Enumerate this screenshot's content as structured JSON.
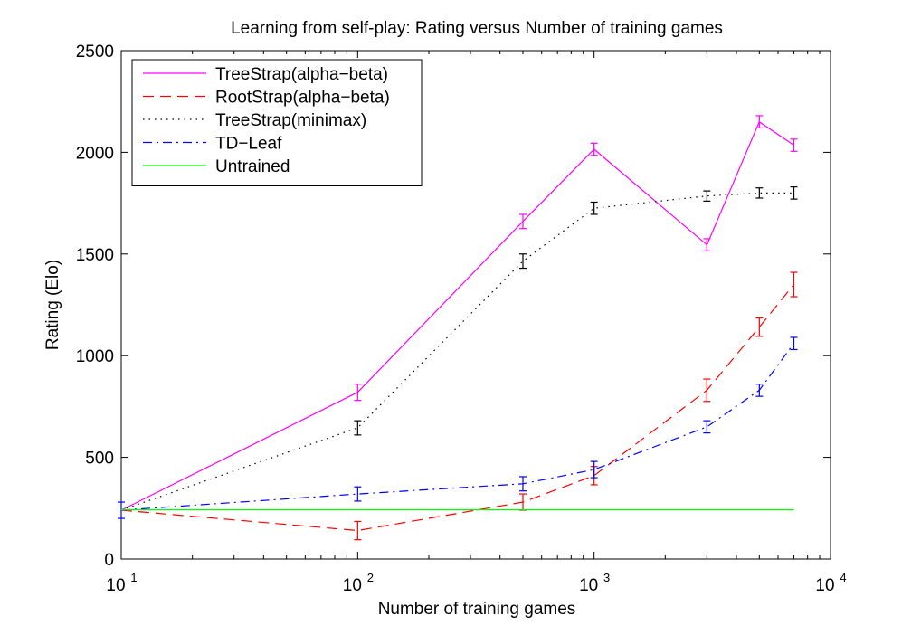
{
  "chart_data": {
    "type": "line",
    "title": "Learning from self-play: Rating versus Number of training games",
    "xlabel": "Number of training games",
    "ylabel": "Rating (Elo)",
    "xscale": "log",
    "xlim": [
      10,
      10000
    ],
    "ylim": [
      0,
      2500
    ],
    "xticks": [
      {
        "value": 10,
        "base": "10",
        "exp": "1"
      },
      {
        "value": 100,
        "base": "10",
        "exp": "2"
      },
      {
        "value": 1000,
        "base": "10",
        "exp": "3"
      },
      {
        "value": 10000,
        "base": "10",
        "exp": "4"
      }
    ],
    "yticks": [
      {
        "value": 0,
        "label": "0"
      },
      {
        "value": 500,
        "label": "500"
      },
      {
        "value": 1000,
        "label": "1000"
      },
      {
        "value": 1500,
        "label": "1500"
      },
      {
        "value": 2000,
        "label": "2000"
      },
      {
        "value": 2500,
        "label": "2500"
      }
    ],
    "legend_position": "top-left",
    "grid": false,
    "series": [
      {
        "name": "TreeStrap(alpha−beta)",
        "color": "#ff00ff",
        "style": "solid",
        "x": [
          10,
          100,
          500,
          1000,
          3000,
          5000,
          7000
        ],
        "y": [
          240,
          820,
          1660,
          2015,
          1545,
          2150,
          2035
        ],
        "err": [
          0,
          40,
          35,
          30,
          30,
          30,
          30
        ]
      },
      {
        "name": "RootStrap(alpha−beta)",
        "color": "#ff0000",
        "style": "dashed",
        "x": [
          10,
          100,
          500,
          1000,
          3000,
          5000,
          7000
        ],
        "y": [
          240,
          140,
          280,
          410,
          830,
          1140,
          1350
        ],
        "err": [
          0,
          45,
          40,
          45,
          55,
          45,
          60
        ]
      },
      {
        "name": "TreeStrap(minimax)",
        "color": "#000000",
        "style": "dotted",
        "x": [
          10,
          100,
          500,
          1000,
          3000,
          5000,
          7000
        ],
        "y": [
          240,
          645,
          1465,
          1725,
          1785,
          1800,
          1800
        ],
        "err": [
          0,
          35,
          35,
          30,
          25,
          25,
          30
        ]
      },
      {
        "name": "TD−Leaf",
        "color": "#0000ff",
        "style": "dashdot",
        "x": [
          10,
          100,
          500,
          1000,
          3000,
          5000,
          7000
        ],
        "y": [
          240,
          320,
          370,
          440,
          650,
          830,
          1060
        ],
        "err": [
          40,
          35,
          35,
          40,
          30,
          30,
          30
        ]
      },
      {
        "name": "Untrained",
        "color": "#00ff00",
        "style": "solid",
        "x": [
          10,
          7000
        ],
        "y": [
          242,
          242
        ],
        "err": [
          0,
          0
        ]
      }
    ]
  }
}
